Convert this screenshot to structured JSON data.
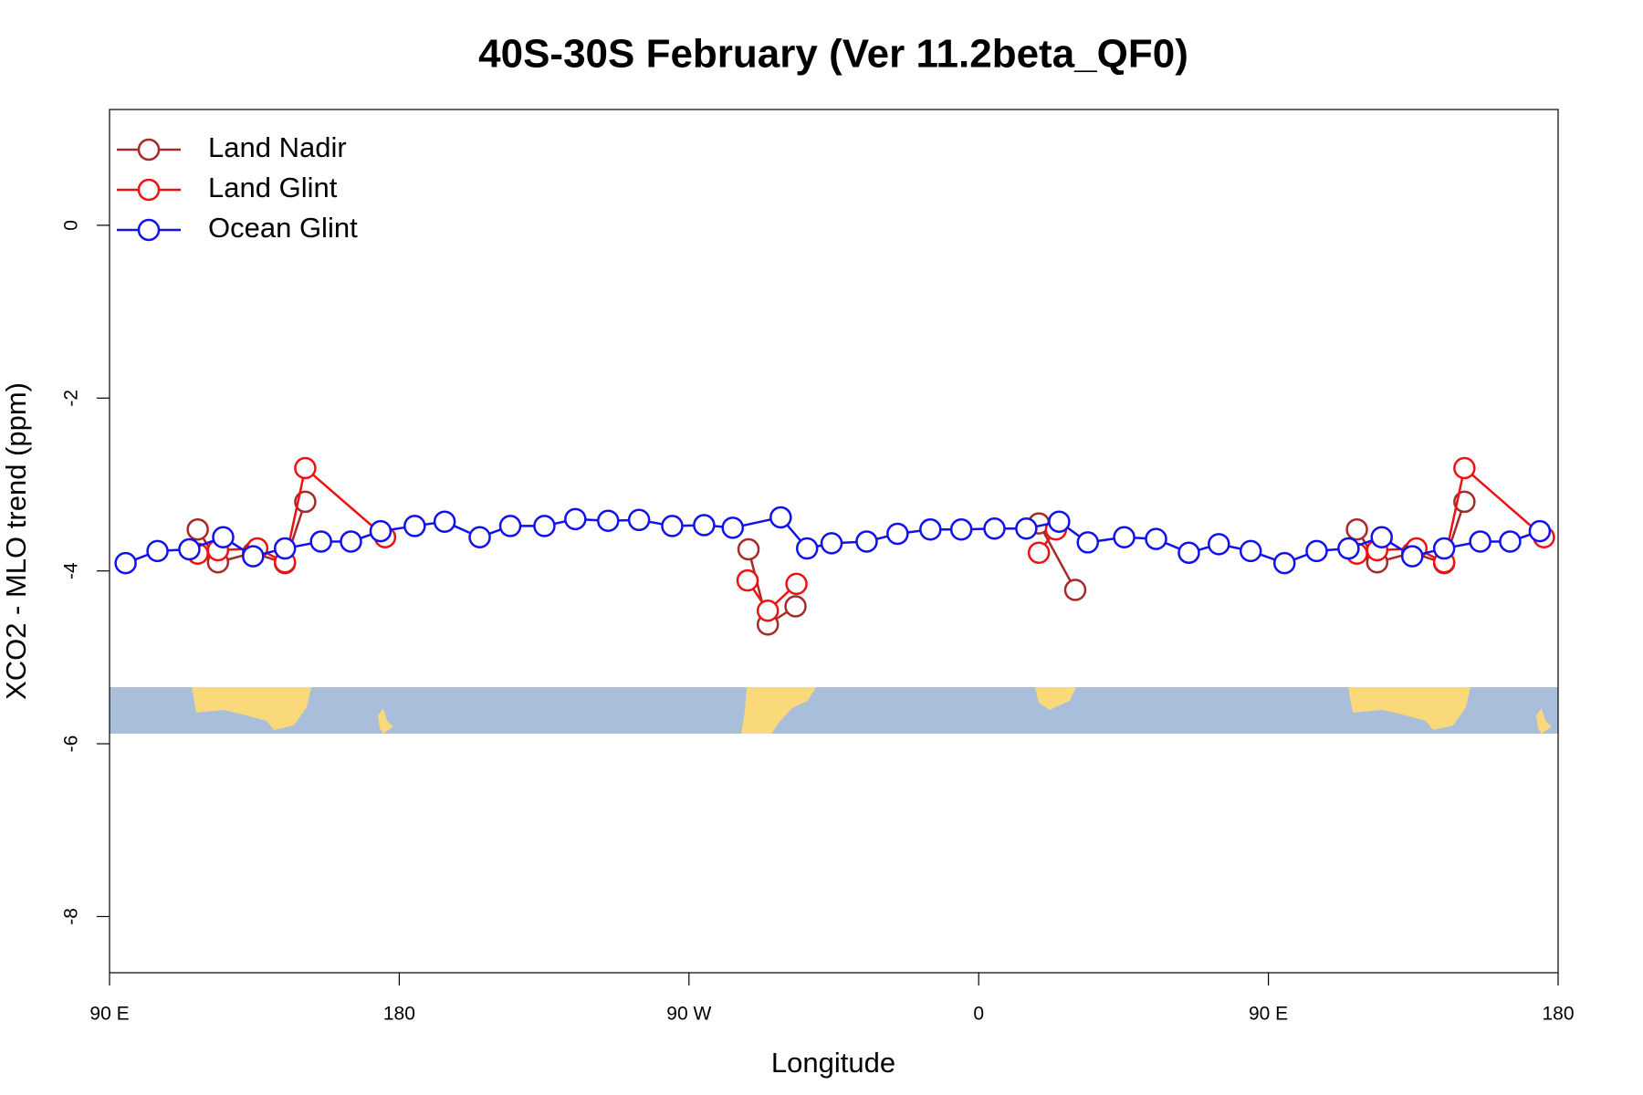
{
  "chart_data": {
    "type": "line",
    "title": "40S-30S February (Ver 11.2beta_QF0)",
    "x_label": "Longitude",
    "y_label": "XCO2 - MLO trend (ppm)",
    "xlim": [
      90,
      540
    ],
    "xticks": [
      {
        "value": 90,
        "label": "90 E"
      },
      {
        "value": 180,
        "label": "180"
      },
      {
        "value": 270,
        "label": "90 W"
      },
      {
        "value": 360,
        "label": "0"
      },
      {
        "value": 450,
        "label": "90 E"
      },
      {
        "value": 540,
        "label": "180"
      }
    ],
    "ylim": [
      -8.65,
      1.34
    ],
    "yticks": [
      0,
      -2,
      -4,
      -6,
      -8
    ],
    "legend": "top-left",
    "series": [
      {
        "name": "Land Nadir",
        "color": "#a52a2a",
        "x": [
          117.4,
          123.7,
          134.6,
          144.5,
          150.8,
          null,
          288.5,
          294.5,
          303.1,
          null,
          378.7,
          390,
          null,
          477.5,
          483.8,
          494.7,
          504.6,
          510.9
        ],
        "values": [
          -3.52,
          -3.9,
          -3.79,
          -3.91,
          -3.2,
          null,
          -3.75,
          -4.62,
          -4.41,
          null,
          -3.45,
          -4.22,
          null,
          -3.52,
          -3.9,
          -3.79,
          -3.91,
          -3.2
        ]
      },
      {
        "name": "Land Glint",
        "color": "#ee1111",
        "x": [
          117.4,
          123.7,
          135.9,
          144.5,
          150.8,
          175.6,
          null,
          288.2,
          294.5,
          303.4,
          null,
          378.7,
          384,
          null,
          477.5,
          483.8,
          496,
          504.6,
          510.9,
          535.6
        ],
        "values": [
          -3.8,
          -3.76,
          -3.74,
          -3.9,
          -2.81,
          -3.61,
          null,
          -4.11,
          -4.46,
          -4.15,
          null,
          -3.79,
          -3.52,
          null,
          -3.8,
          -3.76,
          -3.74,
          -3.9,
          -2.81,
          -3.61
        ]
      },
      {
        "name": "Ocean Glint",
        "color": "#1111ee",
        "x": [
          95,
          104.9,
          114.8,
          125.3,
          134.6,
          144.5,
          155.7,
          165,
          174.2,
          184.8,
          194.1,
          205,
          214.5,
          225.1,
          234.7,
          244.9,
          254.5,
          264.8,
          274.7,
          283.6,
          298.5,
          306.7,
          314.3,
          325.2,
          334.8,
          345,
          354.6,
          364.9,
          374.8,
          385,
          393.9,
          405.2,
          415.1,
          425.3,
          434.6,
          444.5,
          455,
          465,
          474.9,
          485.2,
          494.7,
          504.6,
          515.8,
          525.1,
          534.3
        ],
        "values": [
          -3.91,
          -3.77,
          -3.75,
          -3.61,
          -3.83,
          -3.74,
          -3.66,
          -3.66,
          -3.54,
          -3.48,
          -3.43,
          -3.61,
          -3.48,
          -3.48,
          -3.4,
          -3.42,
          -3.41,
          -3.48,
          -3.47,
          -3.5,
          -3.38,
          -3.74,
          -3.68,
          -3.66,
          -3.57,
          -3.52,
          -3.52,
          -3.51,
          -3.51,
          -3.43,
          -3.67,
          -3.61,
          -3.63,
          -3.79,
          -3.69,
          -3.77,
          -3.91,
          -3.77,
          -3.74,
          -3.61,
          -3.83,
          -3.74,
          -3.66,
          -3.66,
          -3.54
        ]
      }
    ]
  }
}
